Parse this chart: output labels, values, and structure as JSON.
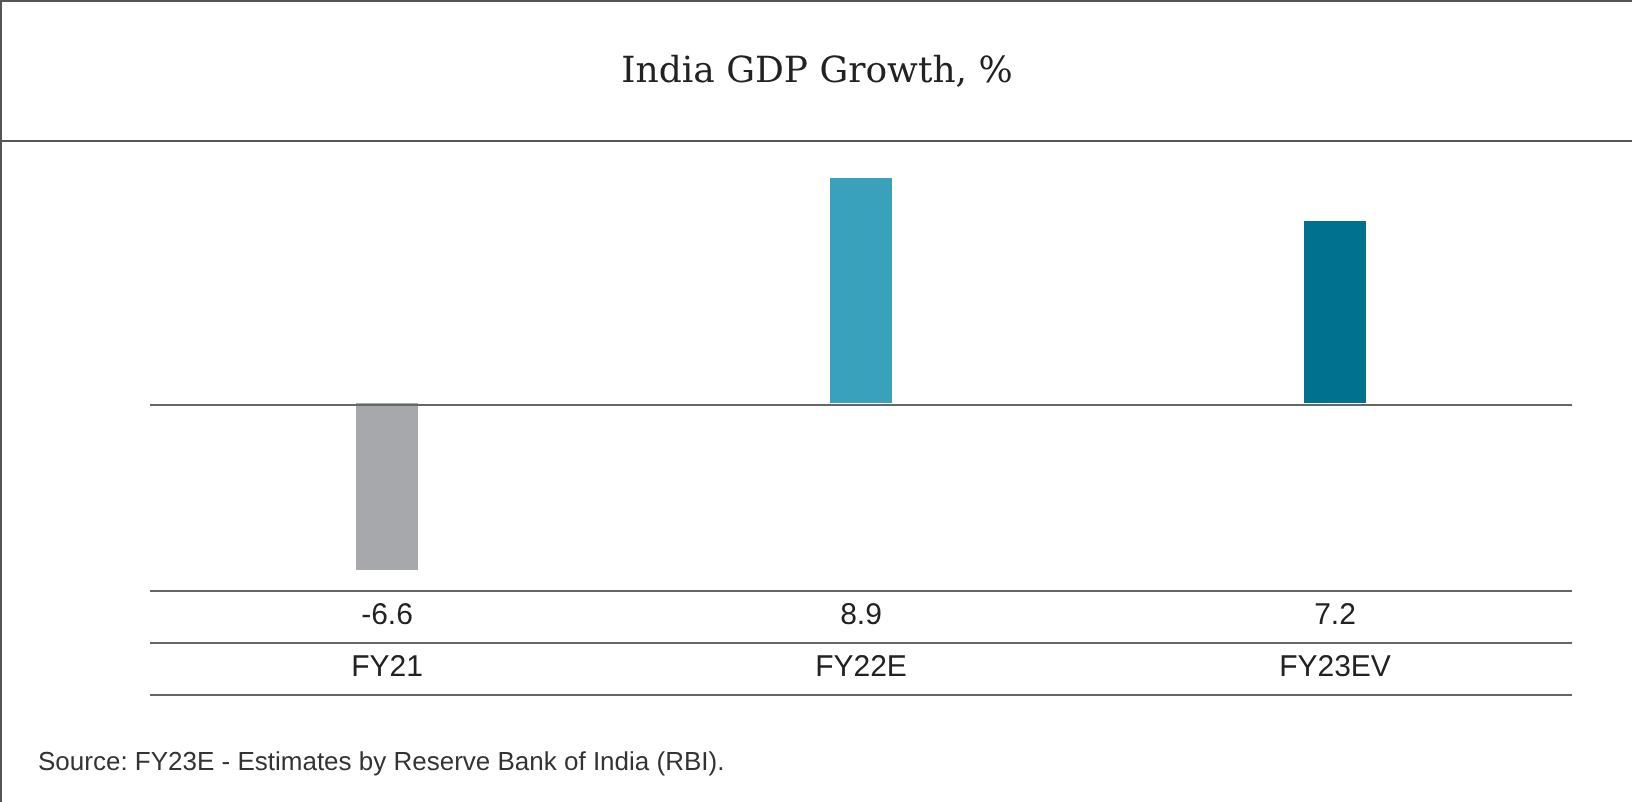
{
  "chart_data": {
    "type": "bar",
    "title": "India GDP Growth, %",
    "categories": [
      "FY21",
      "FY22E",
      "FY23EV"
    ],
    "values": [
      -6.6,
      8.9,
      7.2
    ],
    "colors": [
      "#a7a8ac",
      "#3aa1bd",
      "#00718f"
    ],
    "data_labels": true,
    "annotations": [
      "Source: FY23E - Estimates by Reserve Bank of India (RBI)."
    ]
  }
}
